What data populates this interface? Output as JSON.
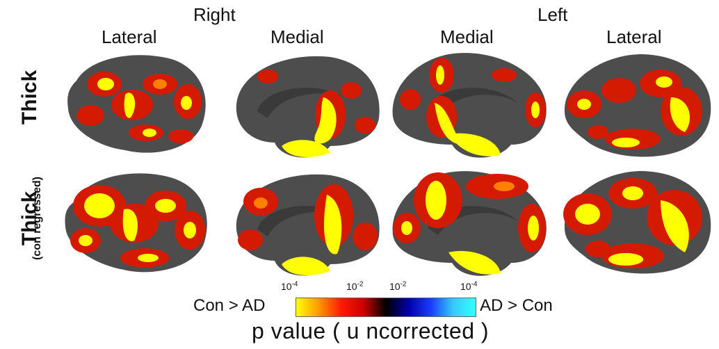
{
  "headers": {
    "right": "Right",
    "left": "Left",
    "lateral_r": "Lateral",
    "medial_r": "Medial",
    "medial_l": "Medial",
    "lateral_l": "Lateral"
  },
  "rows": {
    "row1": "Thick",
    "row2_main": "Thick",
    "row2_sub": "(con regressed)"
  },
  "colorbar": {
    "left_label": "Con > AD",
    "right_label": "AD > Con",
    "ticks": [
      {
        "base": "10",
        "exp": "-4"
      },
      {
        "base": "10",
        "exp": "-2"
      },
      {
        "base": "10",
        "exp": "-2"
      },
      {
        "base": "10",
        "exp": "-4"
      }
    ],
    "colors": [
      "#ffff00",
      "#ff9900",
      "#ff1a00",
      "#cc0000",
      "#000000",
      "#0000aa",
      "#1a3cff",
      "#33ccff",
      "#33ffff"
    ]
  },
  "axis_title": "p value ( u ncorrected )",
  "brain_colors": {
    "surface": "#4d4d4d",
    "hot_low": "#d41a00",
    "hot_mid": "#ff8000",
    "hot_high": "#ffff00"
  }
}
